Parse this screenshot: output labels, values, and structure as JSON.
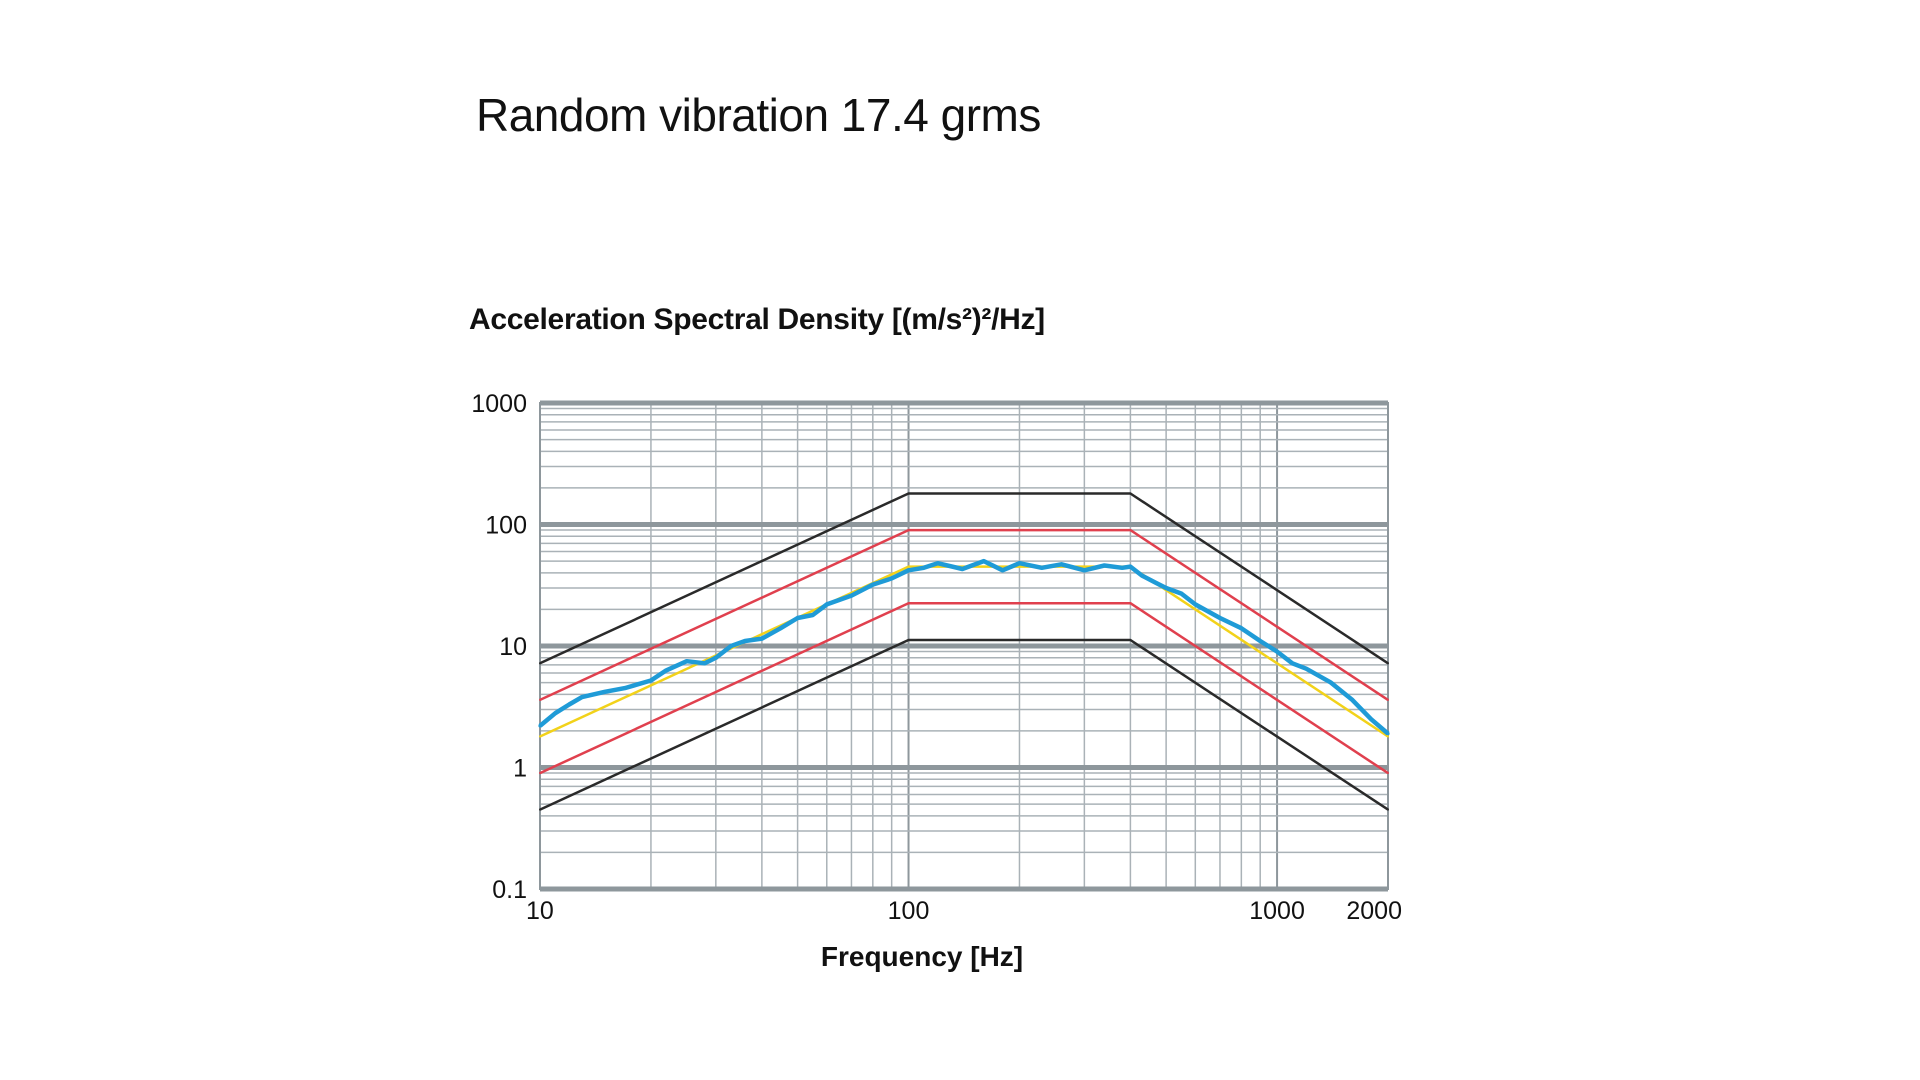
{
  "chart_data": {
    "type": "line",
    "title": "Random vibration 17.4 grms",
    "ylabel": "Acceleration Spectral Density [(m/s²)²/Hz]",
    "xlabel": "Frequency [Hz]",
    "xscale": "log",
    "yscale": "log",
    "xlim": [
      10,
      2000
    ],
    "ylim": [
      0.1,
      1000
    ],
    "xticks": [
      10,
      100,
      1000,
      2000
    ],
    "xtick_labels": [
      "10",
      "100",
      "1000",
      "2000"
    ],
    "yticks": [
      0.1,
      1,
      10,
      100,
      1000
    ],
    "ytick_labels": [
      "0.1",
      "1",
      "10",
      "100",
      "1000"
    ],
    "grid": true,
    "legend": "none",
    "series": [
      {
        "color": "#2a2a2a",
        "x": [
          10,
          100,
          400,
          2000
        ],
        "y": [
          7.2,
          180,
          180,
          7.2
        ]
      },
      {
        "color": "#e0404e",
        "x": [
          10,
          100,
          400,
          2000
        ],
        "y": [
          3.6,
          90,
          90,
          3.6
        ]
      },
      {
        "color": "#e0404e",
        "x": [
          10,
          100,
          400,
          2000
        ],
        "y": [
          0.9,
          22.5,
          22.5,
          0.9
        ]
      },
      {
        "color": "#2a2a2a",
        "x": [
          10,
          100,
          400,
          2000
        ],
        "y": [
          0.45,
          11.2,
          11.2,
          0.45
        ]
      },
      {
        "color": "#f2d21a",
        "x": [
          10,
          100,
          400,
          2000
        ],
        "y": [
          1.8,
          45,
          45,
          1.8
        ]
      },
      {
        "color": "#1f9bd7",
        "x": [
          10,
          11,
          12,
          13,
          15,
          17,
          20,
          22,
          25,
          28,
          30,
          33,
          36,
          40,
          45,
          50,
          55,
          60,
          70,
          80,
          90,
          100,
          110,
          120,
          140,
          160,
          180,
          200,
          230,
          260,
          300,
          340,
          380,
          400,
          430,
          470,
          500,
          550,
          600,
          700,
          800,
          900,
          1000,
          1100,
          1200,
          1400,
          1600,
          1800,
          2000
        ],
        "y": [
          2.2,
          2.8,
          3.3,
          3.8,
          4.2,
          4.5,
          5.2,
          6.3,
          7.5,
          7.2,
          8,
          10,
          11,
          11.5,
          14,
          17,
          18,
          22,
          26,
          32,
          36,
          42,
          44,
          48,
          43,
          50,
          42,
          48,
          44,
          47,
          42,
          46,
          44,
          45,
          38,
          33,
          30,
          27,
          22,
          17,
          14,
          11,
          9,
          7.2,
          6.5,
          5,
          3.6,
          2.5,
          1.9
        ]
      }
    ]
  }
}
